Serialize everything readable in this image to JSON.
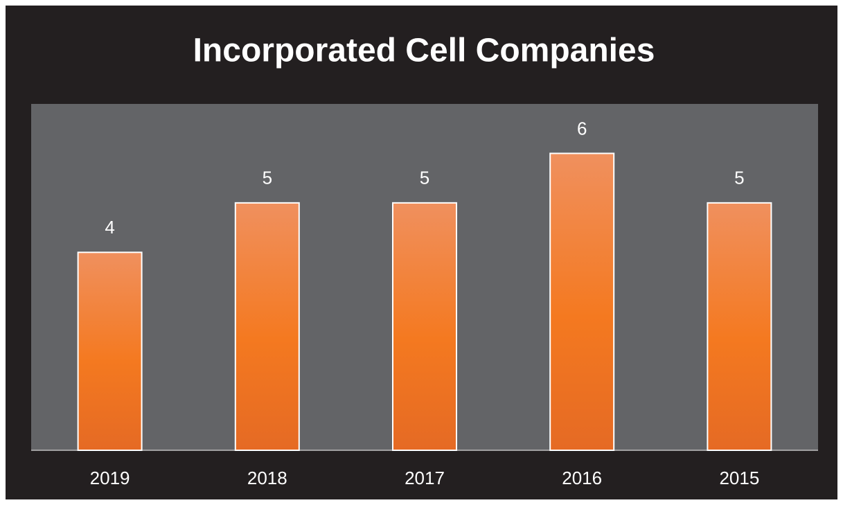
{
  "chart_data": {
    "type": "bar",
    "title": "Incorporated Cell Companies",
    "categories": [
      "2019",
      "2018",
      "2017",
      "2016",
      "2015"
    ],
    "values": [
      4,
      5,
      5,
      6,
      5
    ],
    "color": "#f47920",
    "ylim": [
      0,
      7
    ],
    "grid": false
  }
}
